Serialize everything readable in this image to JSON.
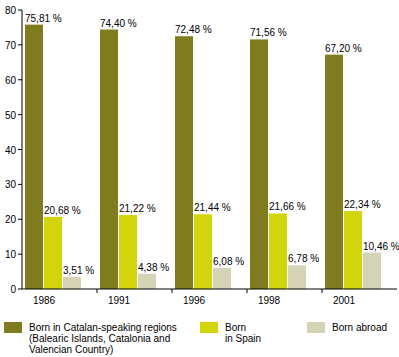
{
  "chart_data": {
    "type": "bar",
    "categories": [
      "1986",
      "1991",
      "1996",
      "1998",
      "2001"
    ],
    "series": [
      {
        "name": "Born in Catalan-speaking regions\n(Balearic Islands, Catalonia and\nValencian Country)",
        "color": "#7f7b1f",
        "values": [
          75.81,
          74.4,
          72.48,
          71.56,
          67.2
        ],
        "value_labels": [
          "75,81 %",
          "74,40 %",
          "72,48 %",
          "71,56 %",
          "67,20 %"
        ]
      },
      {
        "name": "Born\nin Spain",
        "color": "#d2d40c",
        "values": [
          20.68,
          21.22,
          21.44,
          21.66,
          22.34
        ],
        "value_labels": [
          "20,68 %",
          "21,22 %",
          "21,44 %",
          "21,66 %",
          "22,34 %"
        ]
      },
      {
        "name": "Born abroad",
        "color": "#d5d3b6",
        "values": [
          3.51,
          4.38,
          6.08,
          6.78,
          10.46
        ],
        "value_labels": [
          "3,51 %",
          "4,38 %",
          "6,08 %",
          "6,78 %",
          "10,46 %"
        ]
      }
    ],
    "ylim": [
      0,
      80
    ],
    "yticks": [
      0,
      10,
      20,
      30,
      40,
      50,
      60,
      70,
      80
    ],
    "grid": false,
    "data_labels": true,
    "legend": "bottom"
  }
}
